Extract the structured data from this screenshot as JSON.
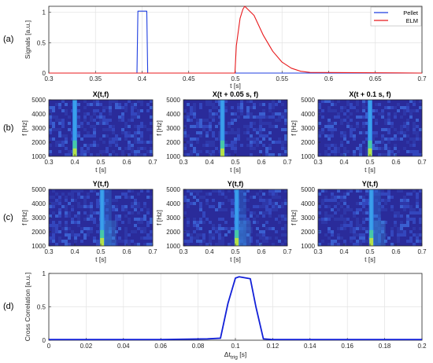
{
  "colors": {
    "pellet": "#1f3fe0",
    "elm": "#e8191c",
    "cc": "#1220d8",
    "grid": "#e3e3e3",
    "axis": "#262626"
  },
  "panel_labels": [
    "(a)",
    "(b)",
    "(c)",
    "(d)"
  ],
  "chart_data": [
    {
      "id": "a",
      "type": "line",
      "xlabel": "t [s]",
      "ylabel": "Signals [a.u.]",
      "xlim": [
        0.3,
        0.7
      ],
      "ylim": [
        0,
        1.1
      ],
      "xticks": [
        0.3,
        0.35,
        0.4,
        0.45,
        0.5,
        0.55,
        0.6,
        0.65,
        0.7
      ],
      "xtick_labels": [
        "0.3",
        "0.35",
        "0.4",
        "0.45",
        "0.5",
        "0.55",
        "0.6",
        "0.65",
        "0.7"
      ],
      "yticks": [
        0,
        0.5,
        1
      ],
      "ytick_labels": [
        "0",
        "0.5",
        "1"
      ],
      "grid": true,
      "legend": "top-right",
      "series": [
        {
          "name": "Pellet",
          "color": "#1f3fe0",
          "x": [
            0.3,
            0.3945,
            0.3955,
            0.405,
            0.406,
            0.7
          ],
          "y": [
            0.0,
            0.0,
            1.02,
            1.02,
            0.0,
            0.0
          ]
        },
        {
          "name": "ELM",
          "color": "#e8191c",
          "x": [
            0.3,
            0.4995,
            0.501,
            0.505,
            0.508,
            0.51,
            0.52,
            0.53,
            0.54,
            0.55,
            0.56,
            0.57,
            0.58,
            0.7
          ],
          "y": [
            0.0,
            0.0,
            0.45,
            0.9,
            1.05,
            1.1,
            0.95,
            0.62,
            0.36,
            0.18,
            0.08,
            0.03,
            0.01,
            0.0
          ]
        }
      ]
    },
    {
      "id": "b1",
      "type": "heatmap",
      "title": "X(t,f)",
      "xlabel": "t [s]",
      "ylabel": "f [Hz]",
      "xlim": [
        0.3,
        0.7
      ],
      "ylim": [
        1000,
        5000
      ],
      "xticks": [
        0.3,
        0.4,
        0.5,
        0.6,
        0.7
      ],
      "xtick_labels": [
        "0.3",
        "0.4",
        "0.5",
        "0.6",
        "0.7"
      ],
      "yticks": [
        1000,
        2000,
        3000,
        4000,
        5000
      ],
      "ytick_labels": [
        "1000",
        "2000",
        "3000",
        "4000",
        "5000"
      ],
      "band_center_t": 0.4,
      "tail": false
    },
    {
      "id": "b2",
      "type": "heatmap",
      "title": "X(t + 0.05 s, f)",
      "xlabel": "t [s]",
      "ylabel": "f [Hz]",
      "xlim": [
        0.3,
        0.7
      ],
      "ylim": [
        1000,
        5000
      ],
      "xticks": [
        0.3,
        0.4,
        0.5,
        0.6,
        0.7
      ],
      "xtick_labels": [
        "0.3",
        "0.4",
        "0.5",
        "0.6",
        "0.7"
      ],
      "yticks": [
        1000,
        2000,
        3000,
        4000,
        5000
      ],
      "ytick_labels": [
        "1000",
        "2000",
        "3000",
        "4000",
        "5000"
      ],
      "band_center_t": 0.45,
      "tail": false
    },
    {
      "id": "b3",
      "type": "heatmap",
      "title": "X(t + 0.1 s, f)",
      "xlabel": "t [s]",
      "ylabel": "f [Hz]",
      "xlim": [
        0.3,
        0.7
      ],
      "ylim": [
        1000,
        5000
      ],
      "xticks": [
        0.3,
        0.4,
        0.5,
        0.6,
        0.7
      ],
      "xtick_labels": [
        "0.3",
        "0.4",
        "0.5",
        "0.6",
        "0.7"
      ],
      "yticks": [
        1000,
        2000,
        3000,
        4000,
        5000
      ],
      "ytick_labels": [
        "1000",
        "2000",
        "3000",
        "4000",
        "5000"
      ],
      "band_center_t": 0.5,
      "tail": false
    },
    {
      "id": "c1",
      "type": "heatmap",
      "title": "Y(t,f)",
      "xlabel": "t [s]",
      "ylabel": "f [Hz]",
      "xlim": [
        0.3,
        0.7
      ],
      "ylim": [
        1000,
        5000
      ],
      "xticks": [
        0.3,
        0.4,
        0.5,
        0.6,
        0.7
      ],
      "xtick_labels": [
        "0.3",
        "0.4",
        "0.5",
        "0.6",
        "0.7"
      ],
      "yticks": [
        1000,
        2000,
        3000,
        4000,
        5000
      ],
      "ytick_labels": [
        "1000",
        "2000",
        "3000",
        "4000",
        "5000"
      ],
      "band_center_t": 0.505,
      "tail": true
    },
    {
      "id": "c2",
      "type": "heatmap",
      "title": "Y(t,f)",
      "xlabel": "t [s]",
      "ylabel": "f [Hz]",
      "xlim": [
        0.3,
        0.7
      ],
      "ylim": [
        1000,
        5000
      ],
      "xticks": [
        0.3,
        0.4,
        0.5,
        0.6,
        0.7
      ],
      "xtick_labels": [
        "0.3",
        "0.4",
        "0.5",
        "0.6",
        "0.7"
      ],
      "yticks": [
        1000,
        2000,
        3000,
        4000,
        5000
      ],
      "ytick_labels": [
        "1000",
        "2000",
        "3000",
        "4000",
        "5000"
      ],
      "band_center_t": 0.505,
      "tail": true
    },
    {
      "id": "c3",
      "type": "heatmap",
      "title": "Y(t,f)",
      "xlabel": "t [s]",
      "ylabel": "f [Hz]",
      "xlim": [
        0.3,
        0.7
      ],
      "ylim": [
        1000,
        5000
      ],
      "xticks": [
        0.3,
        0.4,
        0.5,
        0.6,
        0.7
      ],
      "xtick_labels": [
        "0.3",
        "0.4",
        "0.5",
        "0.6",
        "0.7"
      ],
      "yticks": [
        1000,
        2000,
        3000,
        4000,
        5000
      ],
      "ytick_labels": [
        "1000",
        "2000",
        "3000",
        "4000",
        "5000"
      ],
      "band_center_t": 0.505,
      "tail": true
    },
    {
      "id": "d",
      "type": "line",
      "xlabel": "Δt_trig [s]",
      "ylabel": "Cross Correlation [a.u.]",
      "xlim": [
        0,
        0.2
      ],
      "ylim": [
        0,
        1
      ],
      "xticks": [
        0,
        0.02,
        0.04,
        0.06,
        0.08,
        0.1,
        0.12,
        0.14,
        0.16,
        0.18,
        0.2
      ],
      "xtick_labels": [
        "0",
        "0.02",
        "0.04",
        "0.06",
        "0.08",
        "0.1",
        "0.12",
        "0.14",
        "0.16",
        "0.18",
        "0.2"
      ],
      "yticks": [
        0,
        0.5,
        1
      ],
      "ytick_labels": [
        "0",
        "0.5",
        "1"
      ],
      "grid": true,
      "series": [
        {
          "color": "#1220d8",
          "x": [
            0,
            0.02,
            0.04,
            0.06,
            0.085,
            0.092,
            0.096,
            0.1,
            0.102,
            0.108,
            0.111,
            0.115,
            0.12,
            0.14,
            0.16,
            0.18,
            0.2
          ],
          "y": [
            0.01,
            0.01,
            0.01,
            0.01,
            0.02,
            0.03,
            0.55,
            0.93,
            0.95,
            0.92,
            0.5,
            0.02,
            0.01,
            0.01,
            0.01,
            0.01,
            0.01
          ]
        }
      ]
    }
  ]
}
